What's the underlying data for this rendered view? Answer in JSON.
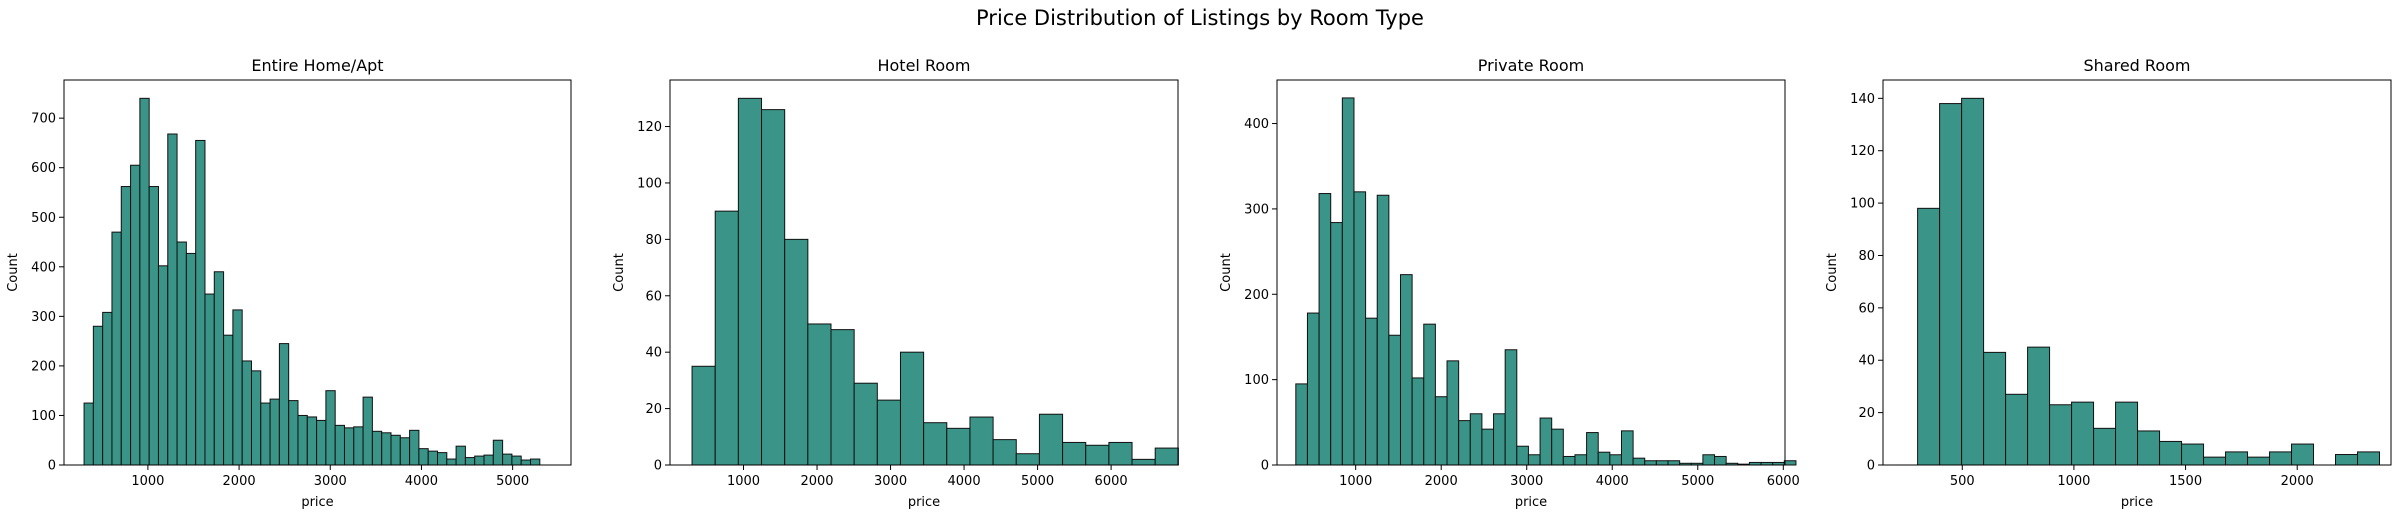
{
  "suptitle": "Price Distribution of Listings by Room Type",
  "colors": {
    "bar_fill": "#3a9487",
    "bar_edge": "#111111"
  },
  "chart_data": [
    {
      "type": "bar",
      "title": "Entire Home/Apt",
      "xlabel": "price",
      "ylabel": "Count",
      "xlim": [
        80,
        5640
      ],
      "ylim": [
        0,
        777
      ],
      "xticks": [
        1000,
        2000,
        3000,
        4000,
        5000
      ],
      "yticks": [
        0,
        100,
        200,
        300,
        400,
        500,
        600,
        700
      ],
      "bin_start": 300,
      "bin_width": 102,
      "values": [
        125,
        280,
        308,
        470,
        562,
        605,
        740,
        562,
        402,
        668,
        450,
        427,
        655,
        345,
        390,
        262,
        313,
        210,
        190,
        125,
        133,
        245,
        130,
        100,
        97,
        90,
        150,
        80,
        75,
        77,
        137,
        68,
        65,
        60,
        55,
        70,
        33,
        28,
        25,
        12,
        38,
        15,
        18,
        20,
        50,
        22,
        18,
        10,
        12
      ]
    },
    {
      "type": "bar",
      "title": "Hotel Room",
      "xlabel": "price",
      "ylabel": "Count",
      "xlim": [
        0,
        6910
      ],
      "ylim": [
        0,
        136.5
      ],
      "xticks": [
        1000,
        2000,
        3000,
        4000,
        5000,
        6000
      ],
      "yticks": [
        0,
        20,
        40,
        60,
        80,
        100,
        120
      ],
      "bin_start": 300,
      "bin_width": 315,
      "values": [
        35,
        90,
        130,
        126,
        80,
        50,
        48,
        29,
        23,
        40,
        15,
        13,
        17,
        9,
        4,
        18,
        8,
        7,
        8,
        2,
        6
      ]
    },
    {
      "type": "bar",
      "title": "Private Room",
      "xlabel": "price",
      "ylabel": "Count",
      "xlim": [
        80,
        6020
      ],
      "ylim": [
        0,
        451
      ],
      "xticks": [
        1000,
        2000,
        3000,
        4000,
        5000,
        6000
      ],
      "yticks": [
        0,
        100,
        200,
        300,
        400
      ],
      "bin_start": 300,
      "bin_width": 136,
      "values": [
        95,
        178,
        318,
        284,
        430,
        320,
        172,
        316,
        152,
        223,
        102,
        165,
        80,
        122,
        52,
        60,
        42,
        60,
        135,
        22,
        12,
        55,
        42,
        10,
        12,
        38,
        15,
        12,
        40,
        8,
        5,
        5,
        5,
        2,
        2,
        12,
        10,
        2,
        1,
        3,
        3,
        3,
        5
      ]
    },
    {
      "type": "bar",
      "title": "Shared Room",
      "xlabel": "price",
      "ylabel": "Count",
      "xlim": [
        145,
        2420
      ],
      "ylim": [
        0,
        147
      ],
      "xticks": [
        500,
        1000,
        1500,
        2000
      ],
      "yticks": [
        0,
        20,
        40,
        60,
        80,
        100,
        120,
        140
      ],
      "bin_start": 300,
      "bin_width": 98.5,
      "values": [
        98,
        138,
        140,
        43,
        27,
        45,
        23,
        24,
        14,
        24,
        13,
        9,
        8,
        3,
        5,
        3,
        5,
        8,
        0,
        4,
        5
      ]
    }
  ]
}
